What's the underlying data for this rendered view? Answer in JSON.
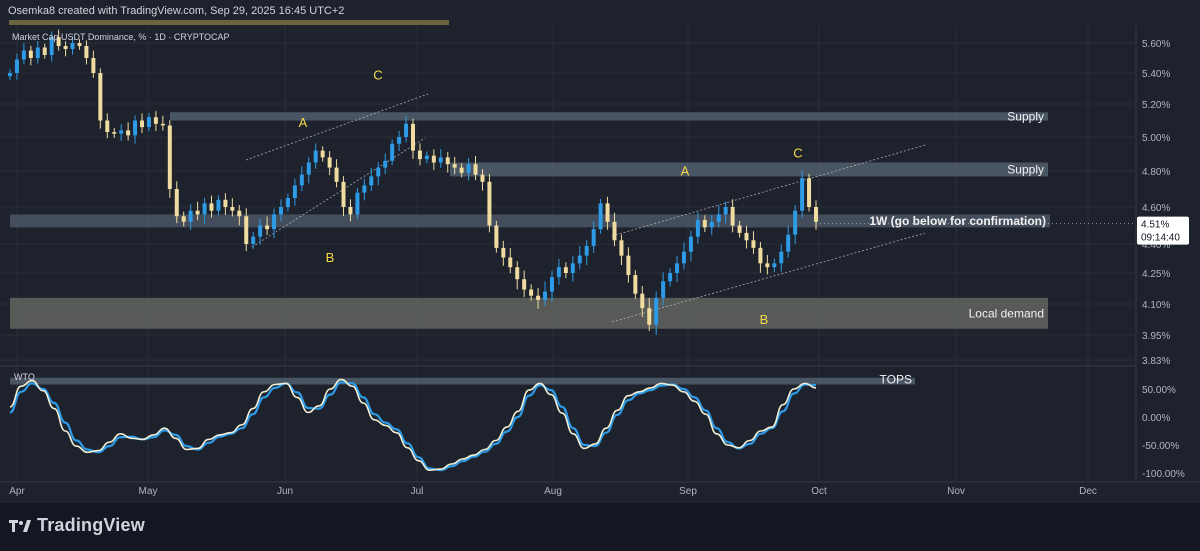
{
  "header": {
    "credit": "Osemka8 created with TradingView.com, Sep 29, 2025 16:45 UTC+2"
  },
  "footer": {
    "brand": "TradingView",
    "logo_icon": "tradingview-logo-icon"
  },
  "colors": {
    "background": "#1e222d",
    "up_candle": "#2d9be6",
    "down_candle": "#f0dca0",
    "zone_supply": "#5d6b7a",
    "zone_demand": "#6b6e64",
    "wave_label": "#f5d94a",
    "wto_fast": "#f2efd6",
    "wto_slow": "#2d9be6",
    "price_tag": "#ffffff"
  },
  "chart_data": [
    {
      "type": "candlestick",
      "title": "Market Cap USDT Dominance, % · 1D · CRYPTOCAP",
      "x_ticks": [
        "Apr",
        "May",
        "Jun",
        "Jul",
        "Aug",
        "Sep",
        "Oct",
        "Nov",
        "Dec"
      ],
      "y_ticks": [
        "5.60%",
        "5.40%",
        "5.20%",
        "5.00%",
        "4.80%",
        "4.60%",
        "4.40%",
        "4.25%",
        "4.10%",
        "3.95%",
        "3.83%"
      ],
      "ylim": [
        3.83,
        5.68
      ],
      "last_price": "4.51%",
      "countdown": "09:14:40",
      "closes": [
        5.4,
        5.49,
        5.55,
        5.5,
        5.57,
        5.52,
        5.64,
        5.58,
        5.56,
        5.6,
        5.58,
        5.5,
        5.4,
        5.1,
        5.03,
        5.02,
        5.04,
        5.01,
        5.1,
        5.06,
        5.12,
        5.08,
        5.07,
        4.7,
        4.55,
        4.52,
        4.58,
        4.56,
        4.62,
        4.58,
        4.64,
        4.6,
        4.58,
        4.55,
        4.4,
        4.44,
        4.5,
        4.48,
        4.56,
        4.6,
        4.65,
        4.72,
        4.78,
        4.85,
        4.92,
        4.88,
        4.82,
        4.74,
        4.6,
        4.56,
        4.68,
        4.72,
        4.77,
        4.82,
        4.86,
        4.96,
        5.0,
        5.08,
        4.92,
        4.87,
        4.89,
        4.85,
        4.88,
        4.84,
        4.82,
        4.79,
        4.84,
        4.78,
        4.74,
        4.5,
        4.38,
        4.33,
        4.28,
        4.22,
        4.17,
        4.14,
        4.12,
        4.16,
        4.23,
        4.28,
        4.25,
        4.3,
        4.34,
        4.39,
        4.48,
        4.62,
        4.52,
        4.42,
        4.34,
        4.24,
        4.15,
        4.08,
        4.0,
        4.13,
        4.21,
        4.25,
        4.3,
        4.36,
        4.44,
        4.53,
        4.49,
        4.52,
        4.56,
        4.6,
        4.5,
        4.46,
        4.42,
        4.38,
        4.3,
        4.28,
        4.3,
        4.36,
        4.45,
        4.58,
        4.76,
        4.6,
        4.52
      ],
      "annotations": [
        {
          "label": "A",
          "price": 5.0
        },
        {
          "label": "B",
          "price": 4.39
        },
        {
          "label": "C",
          "price": 5.28
        },
        {
          "label": "A",
          "price": 4.72
        },
        {
          "label": "B",
          "price": 4.08
        },
        {
          "label": "C",
          "price": 4.82
        }
      ],
      "zones": [
        {
          "label": "Supply",
          "from": 5.1,
          "to": 5.15
        },
        {
          "label": "Supply",
          "from": 4.77,
          "to": 4.85
        },
        {
          "label": "1W (go below for confirmation)",
          "from": 4.49,
          "to": 4.56
        },
        {
          "label": "Local demand",
          "from": 3.98,
          "to": 4.13
        }
      ]
    },
    {
      "type": "line",
      "title": "WTO",
      "y_ticks": [
        "50.00%",
        "0.00%",
        "-50.00%",
        "-100.00%"
      ],
      "ylim": [
        -105,
        85
      ],
      "zones": [
        {
          "label": "TOPS",
          "from": 58,
          "to": 70
        }
      ],
      "series": [
        {
          "values": [
            18,
            55,
            65,
            47,
            15,
            -25,
            -52,
            -63,
            -60,
            -45,
            -30,
            -38,
            -40,
            -32,
            -20,
            -38,
            -58,
            -56,
            -40,
            -32,
            -28,
            -14,
            15,
            45,
            58,
            60,
            35,
            8,
            20,
            50,
            67,
            55,
            25,
            -5,
            -15,
            -28,
            -55,
            -78,
            -95,
            -93,
            -84,
            -75,
            -68,
            -58,
            -42,
            -18,
            10,
            48,
            60,
            40,
            7,
            -30,
            -56,
            -48,
            -20,
            12,
            38,
            45,
            52,
            60,
            57,
            45,
            28,
            5,
            -30,
            -50,
            -55,
            -42,
            -25,
            -18,
            22,
            50,
            60,
            52
          ]
        },
        {
          "values": [
            8,
            45,
            60,
            50,
            25,
            -10,
            -42,
            -58,
            -63,
            -52,
            -36,
            -35,
            -40,
            -36,
            -24,
            -32,
            -52,
            -58,
            -46,
            -35,
            -30,
            -20,
            5,
            35,
            52,
            60,
            44,
            16,
            15,
            40,
            62,
            60,
            35,
            5,
            -10,
            -22,
            -47,
            -72,
            -92,
            -95,
            -88,
            -79,
            -71,
            -62,
            -48,
            -26,
            0,
            38,
            57,
            48,
            18,
            -20,
            -50,
            -52,
            -28,
            4,
            30,
            42,
            48,
            56,
            58,
            50,
            35,
            12,
            -20,
            -45,
            -56,
            -48,
            -30,
            -20,
            10,
            42,
            58,
            57
          ]
        }
      ]
    }
  ]
}
